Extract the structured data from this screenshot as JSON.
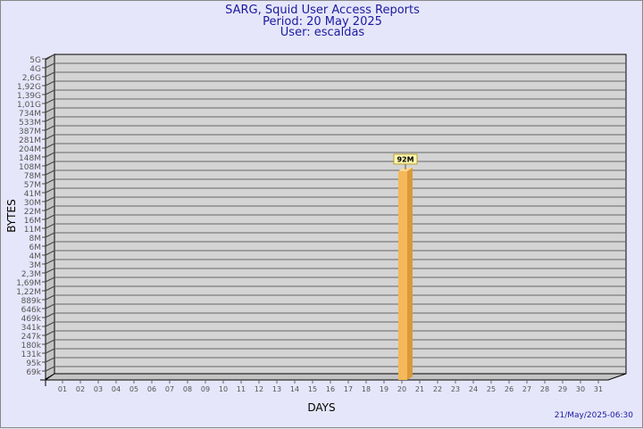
{
  "header": {
    "title": "SARG, Squid User Access Reports",
    "period": "Period: 20 May 2025",
    "user": "User: escaldas"
  },
  "footer": {
    "timestamp": "21/May/2025-06:30"
  },
  "colors": {
    "bar": "#f5b85a",
    "bar_side": "#d99a3a",
    "bar_top": "#ffd890",
    "plot_bg": "#d4d4d4",
    "title": "#1a1aa0"
  },
  "chart_data": {
    "type": "bar",
    "xlabel": "DAYS",
    "ylabel": "BYTES",
    "y_scale": "log",
    "y_ticks": [
      "5G",
      "4G",
      "2,6G",
      "1,92G",
      "1,39G",
      "1,01G",
      "734M",
      "533M",
      "387M",
      "281M",
      "204M",
      "148M",
      "108M",
      "78M",
      "57M",
      "41M",
      "30M",
      "22M",
      "16M",
      "11M",
      "8M",
      "6M",
      "4M",
      "3M",
      "2,3M",
      "1,69M",
      "1,22M",
      "889k",
      "646k",
      "469k",
      "341k",
      "247k",
      "180k",
      "131k",
      "95k",
      "69k"
    ],
    "categories": [
      "01",
      "02",
      "03",
      "04",
      "05",
      "06",
      "07",
      "08",
      "09",
      "10",
      "11",
      "12",
      "13",
      "14",
      "15",
      "16",
      "17",
      "18",
      "19",
      "20",
      "21",
      "22",
      "23",
      "24",
      "25",
      "26",
      "27",
      "28",
      "29",
      "30",
      "31"
    ],
    "bars": [
      {
        "day": "20",
        "value_label": "92M"
      }
    ],
    "grid": true
  }
}
